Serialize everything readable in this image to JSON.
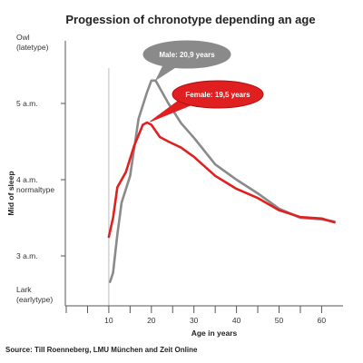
{
  "colors": {
    "male": "#8a8a8a",
    "female": "#e02020",
    "axis": "#555555"
  },
  "chart_data": {
    "type": "line",
    "title": "Progession of chronotype depending an age",
    "xlabel": "Age in years",
    "ylabel": "Mid of sleep",
    "xlim": [
      0,
      65
    ],
    "ylim": [
      2.5,
      6.0
    ],
    "x_ticks": [
      10,
      20,
      30,
      40,
      50,
      60
    ],
    "x_minor_ticks": [
      0,
      5,
      10,
      15,
      20,
      25,
      30,
      35,
      40,
      45,
      50,
      55,
      60
    ],
    "y_ticks": [
      {
        "value": 3.0,
        "label": "3 a.m.",
        "label2": ""
      },
      {
        "value": 4.0,
        "label": "4 a.m.",
        "label2": "normaltype"
      },
      {
        "value": 5.0,
        "label": "5 a.m.",
        "label2": ""
      }
    ],
    "y_extremes": {
      "top": {
        "label": "Owl",
        "label2": "(latetype)"
      },
      "bottom": {
        "label": "Lark",
        "label2": "(earlytype)"
      }
    },
    "reference_line_x": 10,
    "series": [
      {
        "name": "Male",
        "points": [
          [
            10.3,
            2.66
          ],
          [
            11,
            2.78
          ],
          [
            12,
            3.28
          ],
          [
            13,
            3.7
          ],
          [
            15,
            4.05
          ],
          [
            17,
            4.8
          ],
          [
            19,
            5.15
          ],
          [
            20,
            5.3
          ],
          [
            21,
            5.3
          ],
          [
            22,
            5.2
          ],
          [
            24,
            5.0
          ],
          [
            27,
            4.74
          ],
          [
            30,
            4.55
          ],
          [
            35,
            4.2
          ],
          [
            40,
            4.0
          ],
          [
            45,
            3.82
          ],
          [
            50,
            3.62
          ],
          [
            55,
            3.5
          ],
          [
            60,
            3.48
          ],
          [
            63,
            3.45
          ]
        ]
      },
      {
        "name": "Female",
        "points": [
          [
            10,
            3.25
          ],
          [
            11,
            3.5
          ],
          [
            12,
            3.9
          ],
          [
            14,
            4.1
          ],
          [
            16,
            4.45
          ],
          [
            18,
            4.72
          ],
          [
            19,
            4.75
          ],
          [
            20,
            4.72
          ],
          [
            22,
            4.56
          ],
          [
            24,
            4.5
          ],
          [
            27,
            4.42
          ],
          [
            30,
            4.3
          ],
          [
            35,
            4.05
          ],
          [
            40,
            3.88
          ],
          [
            45,
            3.76
          ],
          [
            50,
            3.6
          ],
          [
            55,
            3.51
          ],
          [
            60,
            3.49
          ],
          [
            63,
            3.44
          ]
        ]
      }
    ],
    "callouts": [
      {
        "series": "Male",
        "text": "Male: 20,9 years",
        "peak": [
          20.9,
          5.3
        ]
      },
      {
        "series": "Female",
        "text": "Female: 19,5 years",
        "peak": [
          19.5,
          4.75
        ]
      }
    ],
    "source": "Source: Till Roenneberg, LMU München and Zeit Online"
  }
}
